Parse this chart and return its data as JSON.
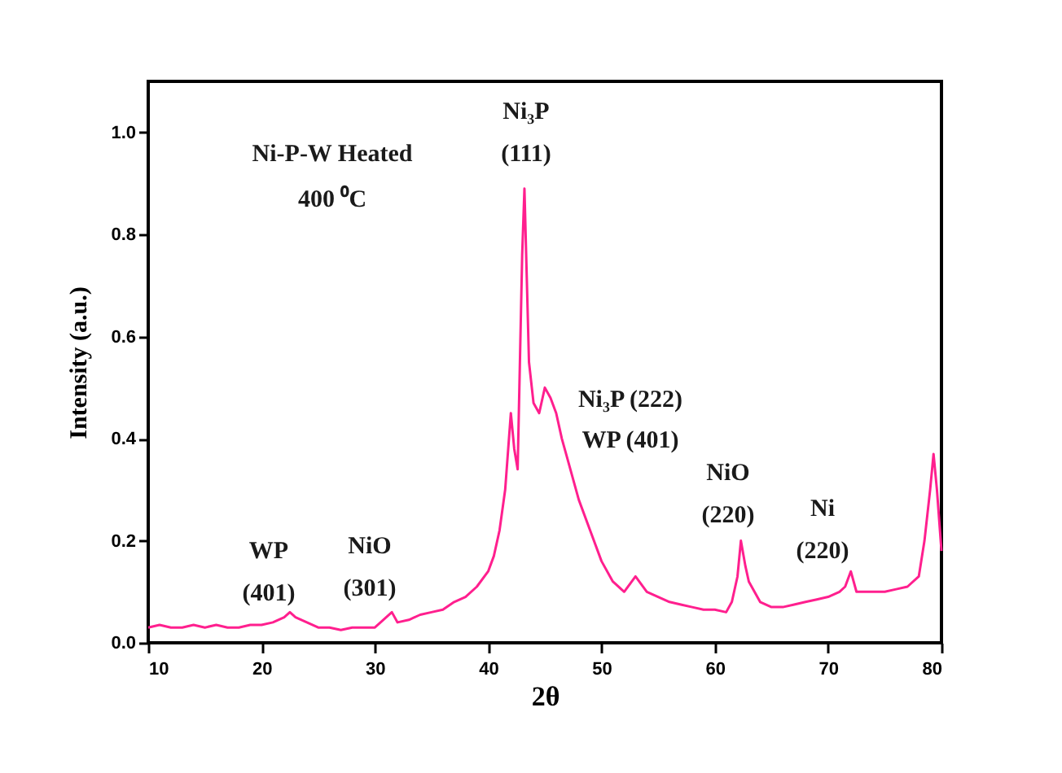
{
  "chart_data": {
    "type": "line",
    "xlabel": "2θ",
    "ylabel": "Intensity (a.u.)",
    "xlim": [
      10,
      80
    ],
    "xticks": [
      10,
      20,
      30,
      40,
      50,
      60,
      70,
      80
    ],
    "ylim": [
      0,
      1.1
    ],
    "yticks": [
      {
        "value": 0,
        "label": "0.0"
      },
      {
        "value": 0.2,
        "label": "0.2"
      },
      {
        "value": 0.4,
        "label": "0.4"
      },
      {
        "value": 0.6,
        "label": "0.6"
      },
      {
        "value": 0.8,
        "label": "0.8"
      },
      {
        "value": 1.0,
        "label": "1.0"
      }
    ],
    "grid": false,
    "line_style": "solid",
    "marker": "none",
    "x": [
      10,
      11,
      12,
      13,
      14,
      15,
      16,
      17,
      18,
      19,
      20,
      21,
      22,
      22.5,
      23,
      24,
      25,
      26,
      27,
      28,
      29,
      30,
      31,
      31.5,
      32,
      33,
      34,
      35,
      36,
      37,
      38,
      39,
      40,
      40.5,
      41,
      41.5,
      42,
      42.3,
      42.6,
      43,
      43.2,
      43.4,
      43.6,
      44,
      44.5,
      45,
      45.5,
      46,
      46.5,
      47,
      48,
      49,
      50,
      51,
      52,
      53,
      54,
      55,
      56,
      57,
      58,
      59,
      60,
      61,
      61.5,
      62,
      62.3,
      62.7,
      63,
      64,
      65,
      66,
      67,
      68,
      69,
      70,
      71,
      71.5,
      72,
      72.5,
      73,
      74,
      75,
      76,
      77,
      78,
      78.5,
      79,
      79.3,
      79.6,
      80
    ],
    "series": [
      {
        "color": "#ff1f8e",
        "values": [
          0.03,
          0.035,
          0.03,
          0.03,
          0.035,
          0.03,
          0.035,
          0.03,
          0.03,
          0.035,
          0.035,
          0.04,
          0.05,
          0.06,
          0.05,
          0.04,
          0.03,
          0.03,
          0.025,
          0.03,
          0.03,
          0.03,
          0.05,
          0.06,
          0.04,
          0.045,
          0.055,
          0.06,
          0.065,
          0.08,
          0.09,
          0.11,
          0.14,
          0.17,
          0.22,
          0.3,
          0.45,
          0.38,
          0.34,
          0.76,
          0.89,
          0.72,
          0.55,
          0.47,
          0.45,
          0.5,
          0.48,
          0.45,
          0.4,
          0.36,
          0.28,
          0.22,
          0.16,
          0.12,
          0.1,
          0.13,
          0.1,
          0.09,
          0.08,
          0.075,
          0.07,
          0.065,
          0.065,
          0.06,
          0.08,
          0.13,
          0.2,
          0.15,
          0.12,
          0.08,
          0.07,
          0.07,
          0.075,
          0.08,
          0.085,
          0.09,
          0.1,
          0.11,
          0.14,
          0.1,
          0.1,
          0.1,
          0.1,
          0.105,
          0.11,
          0.13,
          0.2,
          0.3,
          0.37,
          0.3,
          0.18
        ]
      }
    ],
    "annotations": [
      "Ni-P-W Heated",
      "400 ⁰C",
      "Ni₃P",
      "(111)",
      "Ni₃P (222)",
      "WP (401)",
      "NiO",
      "(220)",
      "Ni",
      "(220)",
      "WP",
      "(401)",
      "NiO",
      "(301)"
    ]
  }
}
